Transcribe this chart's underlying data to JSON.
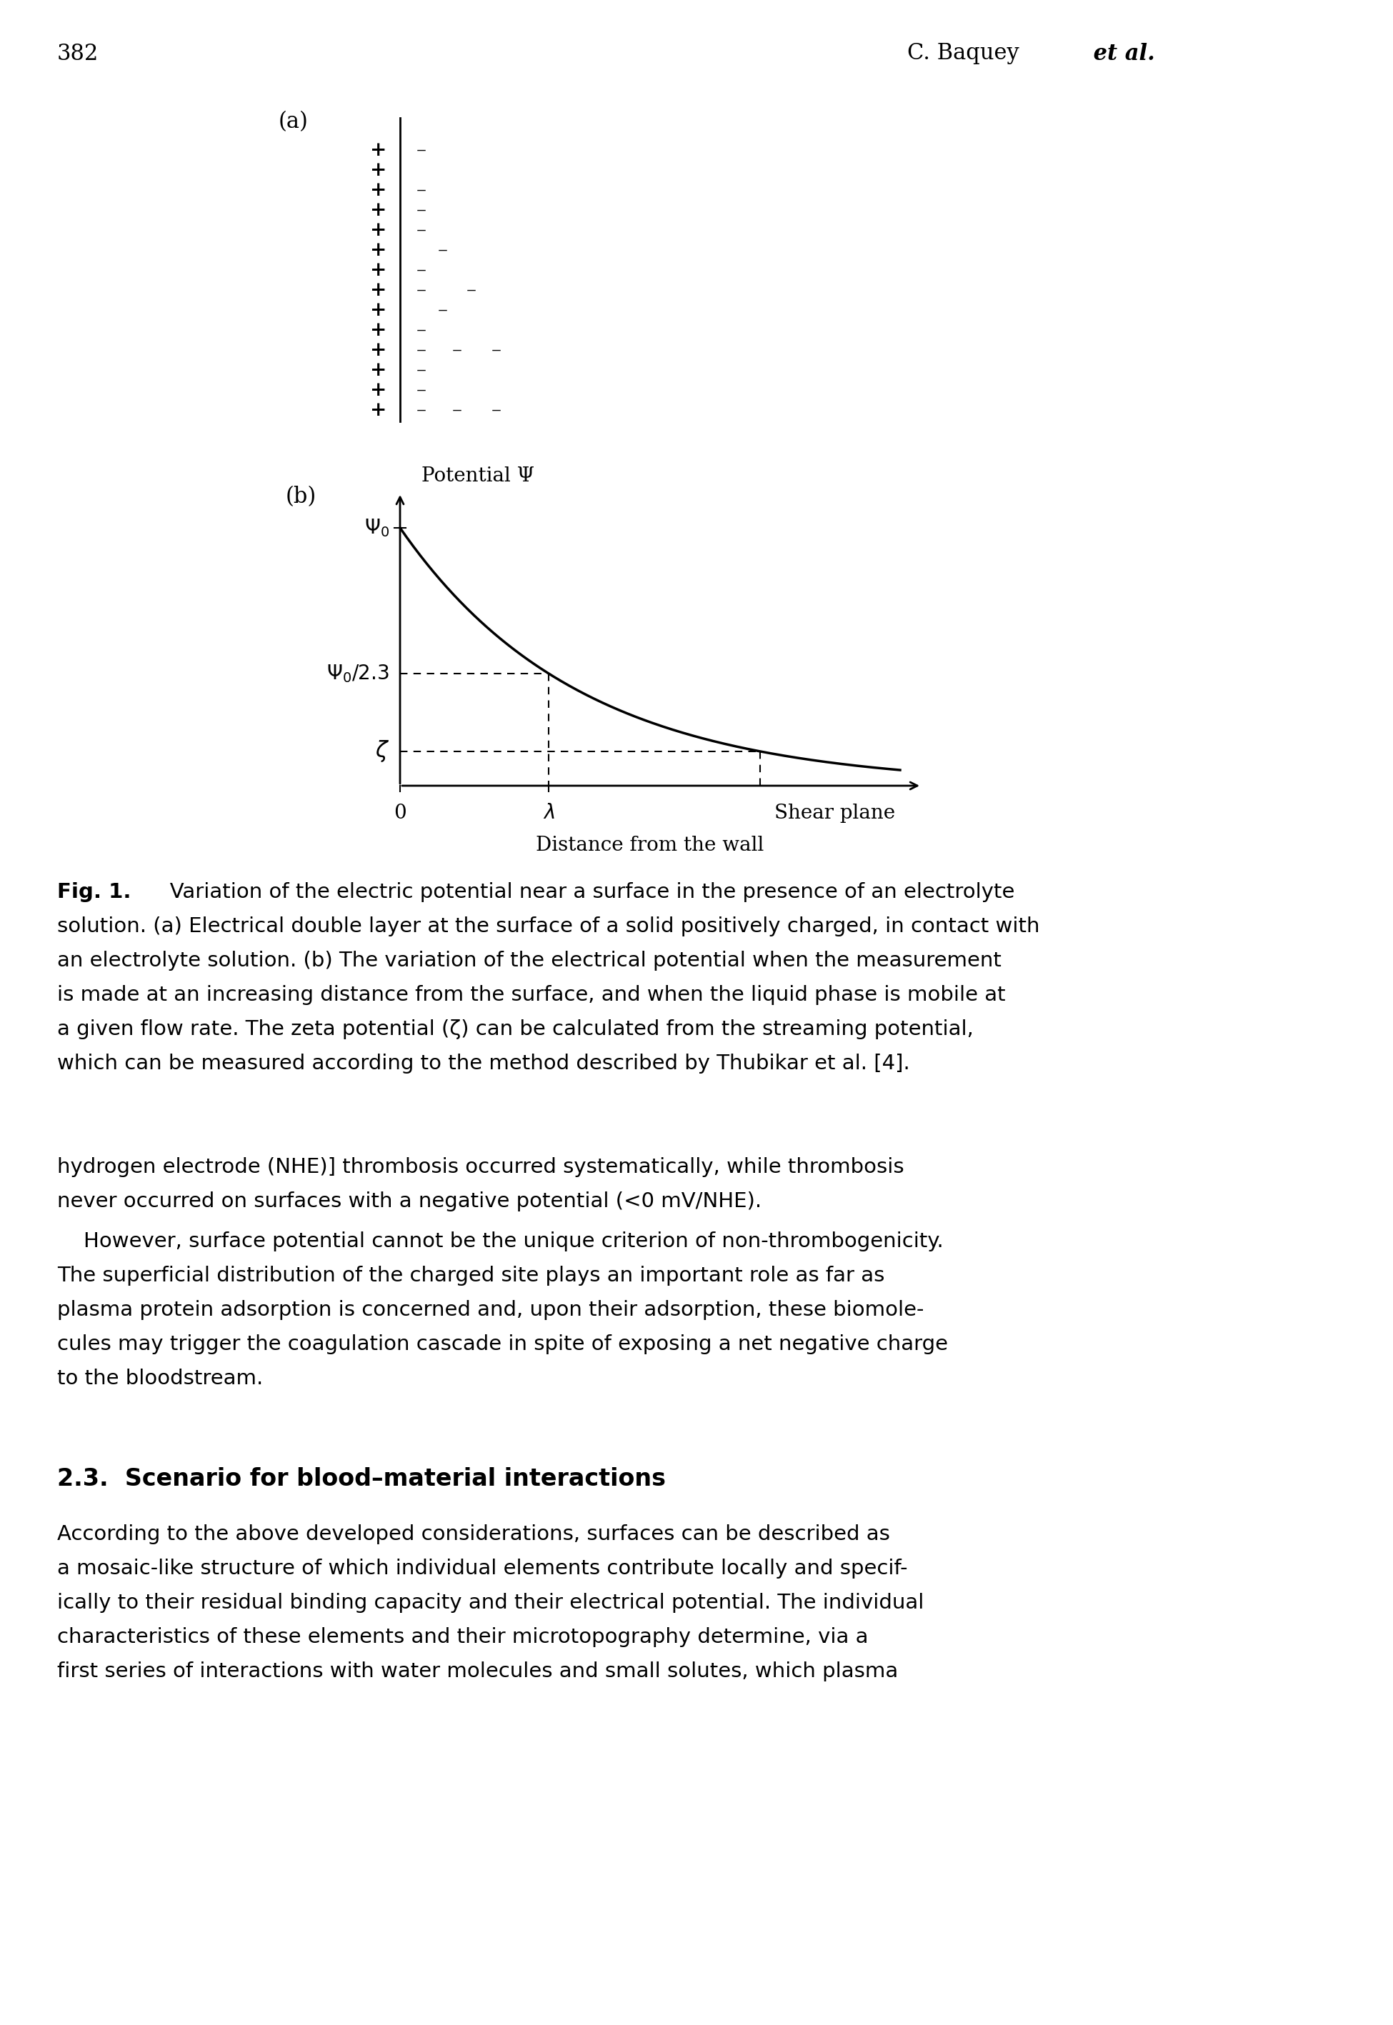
{
  "page_number": "382",
  "header_right": "C. Baquey",
  "header_right_italic": " et al.",
  "background_color": "#ffffff",
  "panel_a_label": "(a)",
  "panel_b_label": "(b)",
  "panel_b_ylabel": "Potential Ψ",
  "panel_b_xlabel": "Distance from the wall",
  "panel_b_x_tick": "0",
  "panel_b_lambda_tick": "λ",
  "panel_b_shear_plane": "Shear plane",
  "panel_b_psi0_label": "Ψ0",
  "panel_b_psi0_23_label": "Ψ0/2.3",
  "panel_b_zeta_label": "ζ",
  "caption_bold_prefix": "Fig. 1.",
  "caption_line1": "   Variation of the electric potential near a surface in the presence of an electrolyte",
  "caption_line2": "solution. (a) Electrical double layer at the surface of a solid positively charged, in contact with",
  "caption_line3": "an electrolyte solution. (b) The variation of the electrical potential when the measurement",
  "caption_line4": "is made at an increasing distance from the surface, and when the liquid phase is mobile at",
  "caption_line5": "a given flow rate. The zeta potential (ζ) can be calculated from the streaming potential,",
  "caption_line6": "which can be measured according to the method described by Thubikar et al. [4].",
  "body1_line1": "hydrogen electrode (NHE)] thrombosis occurred systematically, while thrombosis",
  "body1_line2": "never occurred on surfaces with a negative potential (<0 mV/NHE).",
  "body2_line1": "    However, surface potential cannot be the unique criterion of non-thrombogenicity.",
  "body2_line2": "The superficial distribution of the charged site plays an important role as far as",
  "body2_line3": "plasma protein adsorption is concerned and, upon their adsorption, these biomole-",
  "body2_line4": "cules may trigger the coagulation cascade in spite of exposing a net negative charge",
  "body2_line5": "to the bloodstream.",
  "section_heading": "2.3.  Scenario for blood–material interactions",
  "body3_line1": "According to the above developed considerations, surfaces can be described as",
  "body3_line2": "a mosaic-like structure of which individual elements contribute locally and specif-",
  "body3_line3": "ically to their residual binding capacity and their electrical potential. The individual",
  "body3_line4": "characteristics of these elements and their microtopography determine, via a",
  "body3_line5": "first series of interactions with water molecules and small solutes, which plasma"
}
